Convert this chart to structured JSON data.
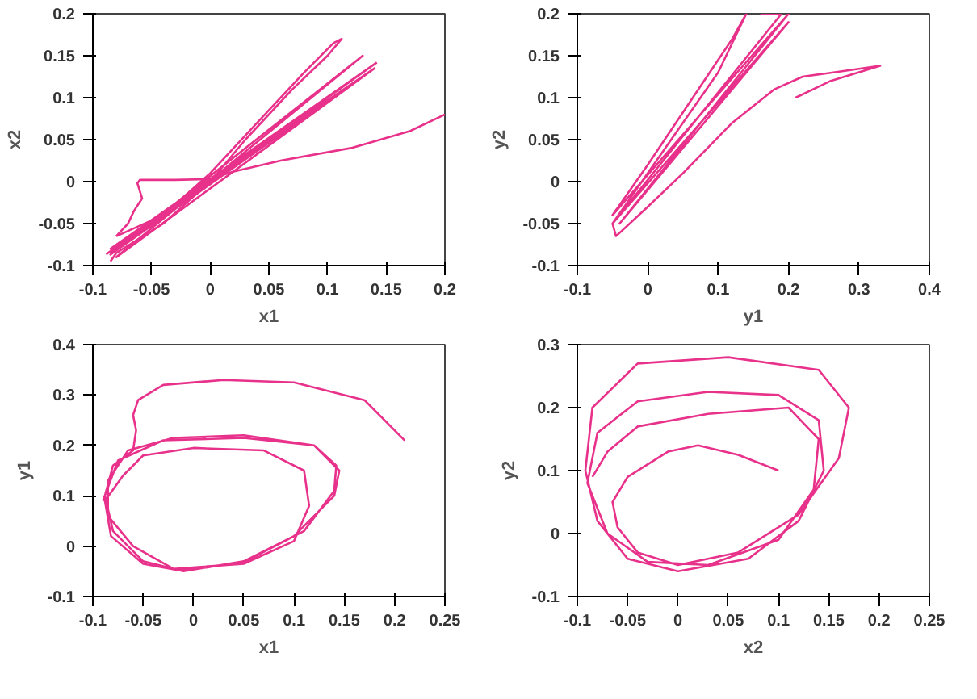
{
  "chart_data": [
    {
      "type": "line",
      "xlabel": "x1",
      "ylabel": "x2",
      "xlim": [
        -0.1,
        0.2
      ],
      "ylim": [
        -0.1,
        0.2
      ],
      "xticks": [
        -0.1,
        -0.05,
        0,
        0.05,
        0.1,
        0.15,
        0.2
      ],
      "yticks": [
        -0.1,
        -0.05,
        0,
        0.05,
        0.1,
        0.15,
        0.2
      ],
      "grid": false,
      "line_style": "solid",
      "series": [
        {
          "color": "#e8318a",
          "x": [
            0.2,
            0.17,
            0.12,
            0.06,
            0.02,
            0,
            -0.03,
            -0.06,
            -0.062,
            -0.058,
            -0.065,
            -0.07,
            -0.078,
            -0.08
          ],
          "values": [
            0.08,
            0.06,
            0.04,
            0.025,
            0.012,
            0.003,
            0.002,
            0.002,
            -0.002,
            -0.02,
            -0.035,
            -0.05,
            -0.062,
            -0.065
          ]
        },
        {
          "color": "#e8318a",
          "x": [
            -0.08,
            -0.04,
            0,
            0.04,
            0.08,
            0.105,
            0.112,
            0.1,
            0.07,
            0.03,
            0,
            -0.04,
            -0.08,
            -0.085
          ],
          "values": [
            -0.065,
            -0.04,
            0.01,
            0.07,
            0.13,
            0.165,
            0.17,
            0.15,
            0.11,
            0.05,
            0,
            -0.05,
            -0.085,
            -0.095
          ]
        },
        {
          "color": "#e8318a",
          "x": [
            -0.085,
            0.14,
            -0.085,
            0.14,
            -0.08,
            0.13,
            -0.085,
            0.135,
            -0.088,
            0.142
          ],
          "values": [
            -0.085,
            0.14,
            -0.08,
            0.135,
            -0.09,
            0.15,
            -0.087,
            0.13,
            -0.086,
            0.142
          ]
        }
      ]
    },
    {
      "type": "line",
      "xlabel": "y1",
      "ylabel": "y2",
      "xlim": [
        -0.1,
        0.4
      ],
      "ylim": [
        -0.1,
        0.2
      ],
      "xticks": [
        -0.1,
        0,
        0.1,
        0.2,
        0.3,
        0.4
      ],
      "yticks": [
        -0.1,
        -0.05,
        0,
        0.05,
        0.1,
        0.15,
        0.2
      ],
      "grid": false,
      "line_style": "solid",
      "series": [
        {
          "color": "#e8318a",
          "x": [
            0.21,
            0.26,
            0.33,
            0.28,
            0.22,
            0.18,
            0.12,
            0.05,
            0,
            -0.045,
            -0.05,
            0.1,
            0.14,
            0.12,
            0,
            -0.05,
            0.2,
            -0.04,
            0.2,
            -0.05,
            0.19,
            0.16
          ],
          "values": [
            0.1,
            0.12,
            0.138,
            0.132,
            0.125,
            0.11,
            0.07,
            0.01,
            -0.03,
            -0.065,
            -0.05,
            0.13,
            0.2,
            0.17,
            0.02,
            -0.04,
            0.2,
            -0.05,
            0.19,
            -0.05,
            0.2,
            0.2
          ]
        }
      ]
    },
    {
      "type": "line",
      "xlabel": "x1",
      "ylabel": "y1",
      "xlim": [
        -0.1,
        0.25
      ],
      "ylim": [
        -0.1,
        0.4
      ],
      "xticks": [
        -0.1,
        -0.05,
        0,
        0.05,
        0.1,
        0.15,
        0.2,
        0.25
      ],
      "yticks": [
        -0.1,
        0,
        0.1,
        0.2,
        0.3,
        0.4
      ],
      "grid": false,
      "line_style": "solid",
      "series": [
        {
          "color": "#e8318a",
          "x": [
            0.21,
            0.17,
            0.1,
            0.03,
            -0.03,
            -0.055,
            -0.06,
            -0.057,
            -0.06,
            -0.08,
            -0.088,
            -0.08,
            -0.05,
            -0.01,
            0.05,
            0.1,
            0.14,
            0.145,
            0.12,
            0.05,
            -0.02,
            -0.065,
            -0.085,
            -0.085,
            -0.06,
            -0.02,
            0.05,
            0.1,
            0.115,
            0.11,
            0.07,
            0,
            -0.05,
            -0.07,
            -0.088,
            -0.082,
            -0.05,
            -0.015,
            0.05,
            0.11,
            0.14,
            0.142,
            0.12,
            0.05,
            -0.03,
            -0.075,
            -0.09
          ],
          "values": [
            0.21,
            0.29,
            0.325,
            0.33,
            0.32,
            0.29,
            0.26,
            0.23,
            0.19,
            0.16,
            0.1,
            0.03,
            -0.03,
            -0.05,
            -0.03,
            0.02,
            0.1,
            0.15,
            0.2,
            0.22,
            0.215,
            0.19,
            0.13,
            0.06,
            0,
            -0.045,
            -0.035,
            0.01,
            0.08,
            0.15,
            0.19,
            0.195,
            0.18,
            0.14,
            0.09,
            0.02,
            -0.035,
            -0.048,
            -0.032,
            0.03,
            0.11,
            0.16,
            0.2,
            0.215,
            0.21,
            0.17,
            0.09
          ]
        }
      ]
    },
    {
      "type": "line",
      "xlabel": "x2",
      "ylabel": "y2",
      "xlim": [
        -0.1,
        0.25
      ],
      "ylim": [
        -0.1,
        0.3
      ],
      "xticks": [
        -0.1,
        -0.05,
        0,
        0.05,
        0.1,
        0.15,
        0.2,
        0.25
      ],
      "yticks": [
        -0.1,
        0,
        0.1,
        0.2,
        0.3
      ],
      "grid": false,
      "line_style": "solid",
      "series": [
        {
          "color": "#e8318a",
          "x": [
            0.1,
            0.06,
            0.02,
            -0.01,
            -0.05,
            -0.065,
            -0.06,
            -0.04,
            0,
            0.06,
            0.12,
            0.16,
            0.17,
            0.14,
            0.05,
            -0.04,
            -0.085,
            -0.092,
            -0.08,
            -0.05,
            0,
            0.07,
            0.12,
            0.145,
            0.14,
            0.1,
            0.03,
            -0.04,
            -0.08,
            -0.09,
            -0.07,
            -0.03,
            0.03,
            0.1,
            0.135,
            0.14,
            0.11,
            0.03,
            -0.04,
            -0.07,
            -0.085
          ],
          "values": [
            0.1,
            0.125,
            0.14,
            0.13,
            0.09,
            0.05,
            0.01,
            -0.03,
            -0.05,
            -0.03,
            0.03,
            0.12,
            0.2,
            0.26,
            0.28,
            0.27,
            0.2,
            0.1,
            0.02,
            -0.04,
            -0.06,
            -0.04,
            0.02,
            0.1,
            0.18,
            0.22,
            0.225,
            0.21,
            0.16,
            0.08,
            0,
            -0.045,
            -0.05,
            -0.01,
            0.07,
            0.15,
            0.2,
            0.19,
            0.17,
            0.13,
            0.09
          ]
        }
      ]
    }
  ]
}
